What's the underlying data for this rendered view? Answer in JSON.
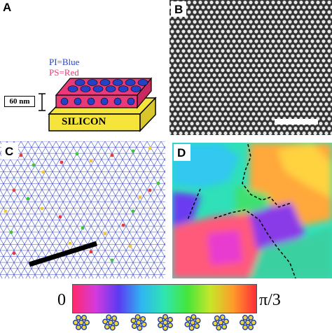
{
  "panels": {
    "a": {
      "letter": "A",
      "legend_pi": "PI=Blue",
      "legend_ps": "PS=Red",
      "thickness": "60 nm",
      "substrate": "SILICON",
      "colors": {
        "pi": "#2442c8",
        "ps": "#e83a78",
        "silicon": "#f5e43a"
      }
    },
    "b": {
      "letter": "B"
    },
    "c": {
      "letter": "C"
    },
    "d": {
      "letter": "D"
    }
  },
  "colorbar": {
    "min_label": "0",
    "max_label": "π/3",
    "stops": [
      "#ff2a6a",
      "#d43ae0",
      "#5a3af2",
      "#2fb6f0",
      "#2fe6b0",
      "#46e53a",
      "#c8e62a",
      "#ff9a2a",
      "#ff2a3a"
    ]
  }
}
